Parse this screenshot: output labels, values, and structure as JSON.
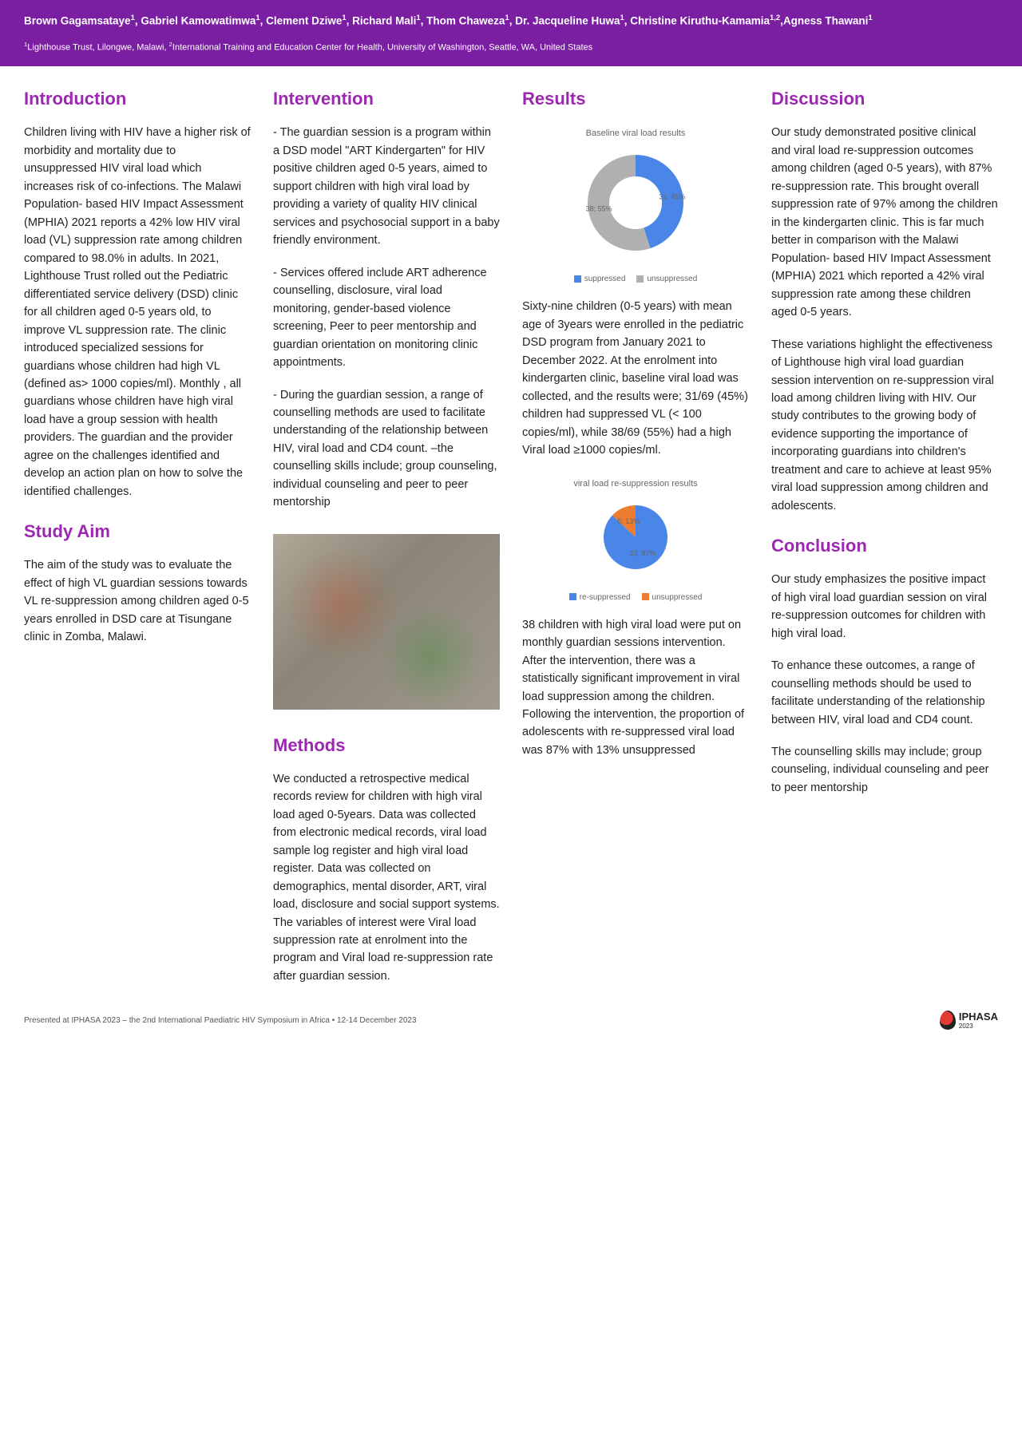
{
  "header": {
    "authors_html": "Brown Gagamsataye<sup>1</sup>, Gabriel Kamowatimwa<sup>1</sup>, Clement Dziwe<sup>1</sup>, Richard Mali<sup>1</sup>, Thom Chaweza<sup>1</sup>, Dr. Jacqueline Huwa<sup>1</sup>,  Christine Kiruthu-Kamamia<sup>1,2</sup>,Agness Thawani<sup>1</sup>",
    "affiliations_html": "<sup>1</sup>Lighthouse Trust, Lilongwe, Malawi, <sup>2</sup>International Training and Education Center for Health, University of Washington, Seattle, WA, United States"
  },
  "sections": {
    "introduction": {
      "title": "Introduction",
      "body": "Children living with HIV have a higher risk of morbidity and mortality due to unsuppressed HIV viral load which increases risk of co-infections. The Malawi Population- based HIV Impact Assessment (MPHIA) 2021 reports a 42% low HIV viral load (VL) suppression rate among    children compared to 98.0% in adults. In 2021, Lighthouse Trust rolled out the Pediatric differentiated service delivery (DSD) clinic for all children aged 0-5 years old, to improve VL suppression rate. The clinic introduced specialized sessions for guardians whose children had high VL (defined as> 1000 copies/ml). Monthly , all guardians whose children have high viral load have a group session with health providers. The guardian and the provider agree on the challenges identified and develop an action plan on how to solve the identified challenges."
    },
    "study_aim": {
      "title": "Study Aim",
      "body": "The aim of the study was to evaluate the effect of high VL guardian sessions towards VL re-suppression among children aged 0-5 years enrolled in DSD care at Tisungane clinic in Zomba, Malawi."
    },
    "intervention": {
      "title": "Intervention",
      "p1": "- The guardian session is a program within a  DSD model \"ART Kindergarten\" for HIV positive children aged 0-5 years,  aimed to support children with high viral load by providing a variety of quality HIV clinical services and psychosocial support in a baby friendly environment.",
      "p2": "- Services offered include ART adherence counselling, disclosure, viral load monitoring, gender-based violence screening, Peer to peer mentorship and guardian orientation on monitoring clinic appointments.",
      "p3": "- During the guardian session, a range of counselling methods are used to facilitate understanding of the relationship between HIV, viral load and CD4 count. –the counselling skills include; group counseling, individual counseling and peer to peer mentorship"
    },
    "methods": {
      "title": "Methods",
      "body": "We conducted a retrospective medical records review for children with high viral load aged 0-5years. Data was collected from electronic medical records, viral load sample log register and high viral load register. Data was collected on demographics, mental disorder, ART, viral load, disclosure and social support systems. The variables of interest were Viral load suppression rate at enrolment into the program and Viral load re-suppression rate after guardian session."
    },
    "results": {
      "title": "Results",
      "p1": "Sixty-nine children (0-5 years)  with mean age of 3years were enrolled in the pediatric DSD program from January 2021 to December 2022. At the enrolment into kindergarten clinic, baseline viral load was collected,  and the results  were; 31/69 (45%) children had suppressed VL (< 100 copies/ml), while 38/69 (55%) had a high Viral load ≥1000 copies/ml.",
      "p2": "38 children with high viral load  were put on monthly guardian sessions intervention. After the intervention, there was a statistically significant improvement in viral load suppression among the children. Following the intervention, the proportion of adolescents with re-suppressed viral load was 87% with 13% unsuppressed"
    },
    "discussion": {
      "title": "Discussion",
      "p1": "Our study demonstrated positive clinical and viral load re-suppression outcomes among children (aged 0-5 years), with 87% re-suppression rate. This brought overall suppression rate of 97% among the children in the kindergarten clinic. This is far much better in   comparison with the Malawi Population- based HIV Impact Assessment (MPHIA) 2021 which  reported a 42% viral suppression rate among these children aged 0-5 years.",
      "p2": "These variations highlight the effectiveness of Lighthouse high viral load guardian session intervention on re-suppression viral load among children living with HIV. Our study contributes to the growing body of evidence supporting the importance of incorporating guardians into children's treatment and care to achieve at least 95% viral load suppression among children and adolescents."
    },
    "conclusion": {
      "title": "Conclusion",
      "p1": "Our study emphasizes the positive impact of high viral load guardian session on viral re-suppression outcomes for children  with high viral load.",
      "p2": "To enhance these outcomes, a range of counselling methods should be used to facilitate understanding of the relationship between HIV, viral load and CD4 count.",
      "p3": "The counselling skills  may include; group counseling, individual counseling and peer to peer mentorship"
    }
  },
  "chart_baseline": {
    "type": "donut",
    "title": "Baseline viral load results",
    "slices": [
      {
        "label": "suppressed",
        "n": 31,
        "pct": 45,
        "color": "#4a86e8",
        "tag": "31; 45%"
      },
      {
        "label": "unsuppressed",
        "n": 38,
        "pct": 55,
        "color": "#b0b0b0",
        "tag": "38; 55%"
      }
    ],
    "inner_radius_ratio": 0.55,
    "background": "#ffffff",
    "legend_marker": "square",
    "font_size": 10
  },
  "chart_resuppression": {
    "type": "pie",
    "title": "viral load  re-suppression results",
    "slices": [
      {
        "label": "re-suppressed",
        "n": 33,
        "pct": 87,
        "color": "#4a86e8",
        "tag": "33; 87%"
      },
      {
        "label": "unsuppressed",
        "n": 5,
        "pct": 13,
        "color": "#ed7d31",
        "tag": "5; 13%"
      }
    ],
    "background": "#ffffff",
    "legend_marker": "square",
    "font_size": 10
  },
  "footer": {
    "text": "Presented at IPHASA 2023 – the 2nd International Paediatric HIV Symposium in Africa  •  12-14 December 2023",
    "logo_name": "IPHASA",
    "logo_year": "2023"
  }
}
